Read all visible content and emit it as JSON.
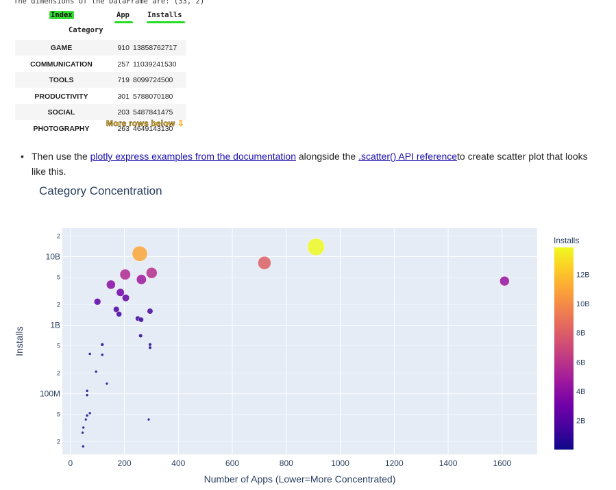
{
  "notebook": {
    "dims_text": "The dimensions of the DataFrame are: (33, 2)",
    "table": {
      "index_label": "Index",
      "columns": [
        "App",
        "Installs"
      ],
      "index_name": "Category",
      "rows": [
        {
          "category": "GAME",
          "app": "910",
          "installs": "13858762717"
        },
        {
          "category": "COMMUNICATION",
          "app": "257",
          "installs": "11039241530"
        },
        {
          "category": "TOOLS",
          "app": "719",
          "installs": "8099724500"
        },
        {
          "category": "PRODUCTIVITY",
          "app": "301",
          "installs": "5788070180"
        },
        {
          "category": "SOCIAL",
          "app": "203",
          "installs": "5487841475"
        },
        {
          "category": "PHOTOGRAPHY",
          "app": "263",
          "installs": "4649143130"
        }
      ],
      "more_rows_label": "More rows below",
      "more_rows_arrow": "⇩"
    },
    "bullet": {
      "part1": "Then use the ",
      "link1": "plotly express examples from the documentation",
      "part2": " alongside the ",
      "link2": ".scatter() API reference",
      "part3": "to create scatter plot that looks like this."
    }
  },
  "chart_data": {
    "type": "scatter",
    "title": "Category Concentration",
    "xlabel": "Number of Apps (Lower=More Concentrated)",
    "ylabel": "Installs",
    "xlim": [
      -30,
      1730
    ],
    "ylim": [
      13000000,
      26000000000
    ],
    "y_scale": "log",
    "x_ticks": [
      0,
      200,
      400,
      600,
      800,
      1000,
      1200,
      1400,
      1600
    ],
    "y_major_ticks": [
      {
        "value": 100000000,
        "label": "100M"
      },
      {
        "value": 1000000000,
        "label": "1B"
      },
      {
        "value": 10000000000,
        "label": "10B"
      }
    ],
    "y_minor_ticks": [
      {
        "value": 20000000,
        "label": "2"
      },
      {
        "value": 50000000,
        "label": "5"
      },
      {
        "value": 200000000,
        "label": "2"
      },
      {
        "value": 500000000,
        "label": "5"
      },
      {
        "value": 2000000000,
        "label": "2"
      },
      {
        "value": 5000000000,
        "label": "5"
      },
      {
        "value": 20000000000,
        "label": "2"
      }
    ],
    "colorbar": {
      "title": "Installs",
      "min": 0,
      "max": 13858762717,
      "ticks": [
        {
          "value": 2000000000,
          "label": "2B"
        },
        {
          "value": 4000000000,
          "label": "4B"
        },
        {
          "value": 6000000000,
          "label": "6B"
        },
        {
          "value": 8000000000,
          "label": "8B"
        },
        {
          "value": 10000000000,
          "label": "10B"
        },
        {
          "value": 12000000000,
          "label": "12B"
        }
      ],
      "colorscale": [
        "#0d0887",
        "#46039f",
        "#7201a8",
        "#9c179e",
        "#bd3786",
        "#d8576b",
        "#ed7953",
        "#fb9f3a",
        "#fdca26",
        "#f0f921"
      ]
    },
    "points": [
      {
        "x": 910,
        "y": 13858762717
      },
      {
        "x": 257,
        "y": 11039241530
      },
      {
        "x": 719,
        "y": 8099724500
      },
      {
        "x": 1609,
        "y": 4400000000
      },
      {
        "x": 301,
        "y": 5788070180
      },
      {
        "x": 203,
        "y": 5487841475
      },
      {
        "x": 263,
        "y": 4649143130
      },
      {
        "x": 150,
        "y": 3900000000
      },
      {
        "x": 185,
        "y": 3000000000
      },
      {
        "x": 205,
        "y": 2500000000
      },
      {
        "x": 100,
        "y": 2200000000
      },
      {
        "x": 170,
        "y": 1700000000
      },
      {
        "x": 180,
        "y": 1450000000
      },
      {
        "x": 295,
        "y": 1600000000
      },
      {
        "x": 250,
        "y": 1250000000
      },
      {
        "x": 262,
        "y": 1200000000
      },
      {
        "x": 260,
        "y": 700000000
      },
      {
        "x": 295,
        "y": 520000000
      },
      {
        "x": 295,
        "y": 470000000
      },
      {
        "x": 118,
        "y": 520000000
      },
      {
        "x": 118,
        "y": 370000000
      },
      {
        "x": 72,
        "y": 380000000
      },
      {
        "x": 95,
        "y": 210000000
      },
      {
        "x": 135,
        "y": 140000000
      },
      {
        "x": 62,
        "y": 110000000
      },
      {
        "x": 62,
        "y": 95000000
      },
      {
        "x": 72,
        "y": 52000000
      },
      {
        "x": 62,
        "y": 48000000
      },
      {
        "x": 57,
        "y": 42000000
      },
      {
        "x": 48,
        "y": 32000000
      },
      {
        "x": 45,
        "y": 27000000
      },
      {
        "x": 47,
        "y": 17000000
      },
      {
        "x": 290,
        "y": 42000000
      }
    ]
  }
}
